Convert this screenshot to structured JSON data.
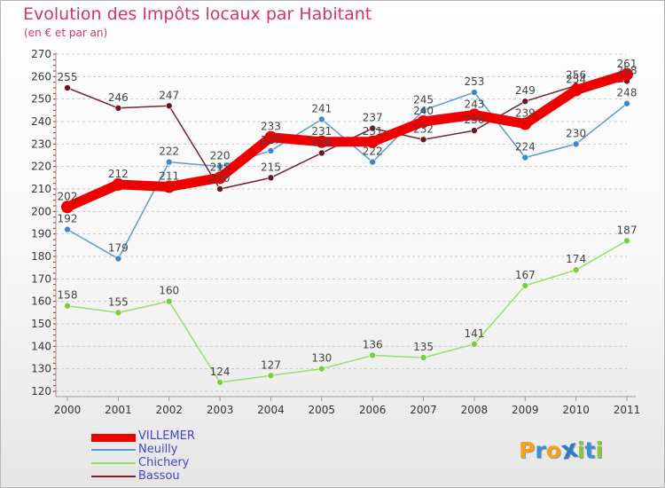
{
  "header": {
    "title": "Evolution des Impôts locaux par Habitant",
    "subtitle": "(en € et par an)"
  },
  "chart_data": {
    "type": "line",
    "title": "Evolution des Impôts locaux par Habitant",
    "subtitle": "(en € et par an)",
    "x": [
      "2000",
      "2001",
      "2002",
      "2003",
      "2004",
      "2005",
      "2006",
      "2007",
      "2008",
      "2009",
      "2010",
      "2011"
    ],
    "ylim": [
      120,
      270
    ],
    "yticks": [
      120,
      130,
      140,
      150,
      160,
      170,
      180,
      190,
      200,
      210,
      220,
      230,
      240,
      250,
      260,
      270
    ],
    "grid": "dashed horizontal",
    "legend_position": "bottom-left",
    "series": [
      {
        "name": "VILLEMER",
        "color": "#ee0000",
        "values": [
          202,
          212,
          211,
          215,
          233,
          231,
          231,
          240,
          243,
          239,
          254,
          261
        ]
      },
      {
        "name": "Neuilly",
        "color": "#5b9bd5",
        "values": [
          192,
          179,
          222,
          220,
          227,
          241,
          222,
          245,
          253,
          224,
          230,
          248
        ]
      },
      {
        "name": "Chichery",
        "color": "#99dd66",
        "values": [
          158,
          155,
          160,
          124,
          127,
          130,
          136,
          135,
          141,
          167,
          174,
          187
        ]
      },
      {
        "name": "Bassou",
        "color": "#7b2230",
        "values": [
          255,
          246,
          247,
          210,
          215,
          226,
          237,
          232,
          236,
          249,
          256,
          258
        ]
      }
    ]
  },
  "logo": {
    "letters": [
      "P",
      "r",
      "o",
      "x",
      "i",
      "t",
      "i"
    ],
    "colors": [
      "#f5a21b",
      "#3d8fd6",
      "#f5a21b",
      "#2e7cc4",
      "#8cc63f",
      "#3d8fd6",
      "#8cc63f"
    ]
  }
}
